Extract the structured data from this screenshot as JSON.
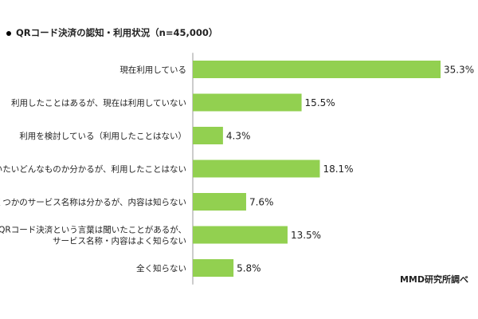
{
  "title": "QRコード決済の認知・利用状況（n=45,000）",
  "source": "MMD研究所調べ",
  "colors": {
    "bar": "#92d050",
    "axis": "#9a9a9a",
    "text": "#222222"
  },
  "chart_data": {
    "type": "bar",
    "orientation": "horizontal",
    "title": "QRコード決済の認知・利用状況（n=45,000）",
    "categories": [
      [
        "現在利用している"
      ],
      [
        "利用したことはあるが、現在は利用していない"
      ],
      [
        "利用を検討している（利用したことはない）"
      ],
      [
        "だいたいどんなものか分かるが、利用したことはない"
      ],
      [
        "いくつかのサービス名称は分かるが、内容は知らない"
      ],
      [
        "QRコード決済という言葉は聞いたことがあるが、",
        "サービス名称・内容はよく知らない"
      ],
      [
        "全く知らない"
      ]
    ],
    "values": [
      35.3,
      15.5,
      4.3,
      18.1,
      7.6,
      13.5,
      5.8
    ],
    "value_labels": [
      "35.3%",
      "15.5%",
      "4.3%",
      "18.1%",
      "7.6%",
      "13.5%",
      "5.8%"
    ],
    "unit": "%",
    "xlim": [
      0,
      35.3
    ],
    "grid": false,
    "legend": "none"
  }
}
